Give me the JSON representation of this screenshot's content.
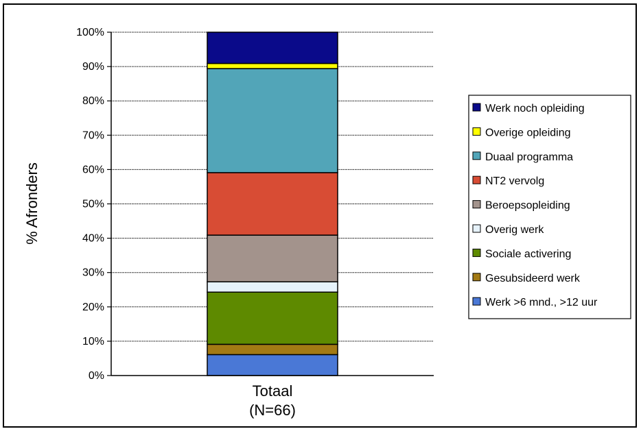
{
  "chart_data": {
    "type": "bar",
    "stacked": true,
    "ylabel": "% Afronders",
    "categories": [
      [
        "Totaal",
        "(N=66)"
      ]
    ],
    "ylim": [
      0,
      100
    ],
    "yticks": [
      "0%",
      "10%",
      "20%",
      "30%",
      "40%",
      "50%",
      "60%",
      "70%",
      "80%",
      "90%",
      "100%"
    ],
    "grid": true,
    "legend_position": "right",
    "series": [
      {
        "name": "Werk >6 mnd., >12 uur",
        "values": [
          6.1
        ],
        "color": "#4a78d6"
      },
      {
        "name": "Gesubsideerd werk",
        "values": [
          3.0
        ],
        "color": "#a37a14"
      },
      {
        "name": "Sociale activering",
        "values": [
          15.2
        ],
        "color": "#5e8a00"
      },
      {
        "name": "Overig werk",
        "values": [
          3.0
        ],
        "color": "#e6f2fa"
      },
      {
        "name": "Beroepsopleiding",
        "values": [
          13.6
        ],
        "color": "#a3938c"
      },
      {
        "name": "NT2 vervolg",
        "values": [
          18.2
        ],
        "color": "#d84c34"
      },
      {
        "name": "Duaal programma",
        "values": [
          30.3
        ],
        "color": "#52a5b8"
      },
      {
        "name": "Overige opleiding",
        "values": [
          1.5
        ],
        "color": "#ffff00"
      },
      {
        "name": "Werk noch opleiding",
        "values": [
          9.1
        ],
        "color": "#0a0a8a"
      }
    ]
  }
}
